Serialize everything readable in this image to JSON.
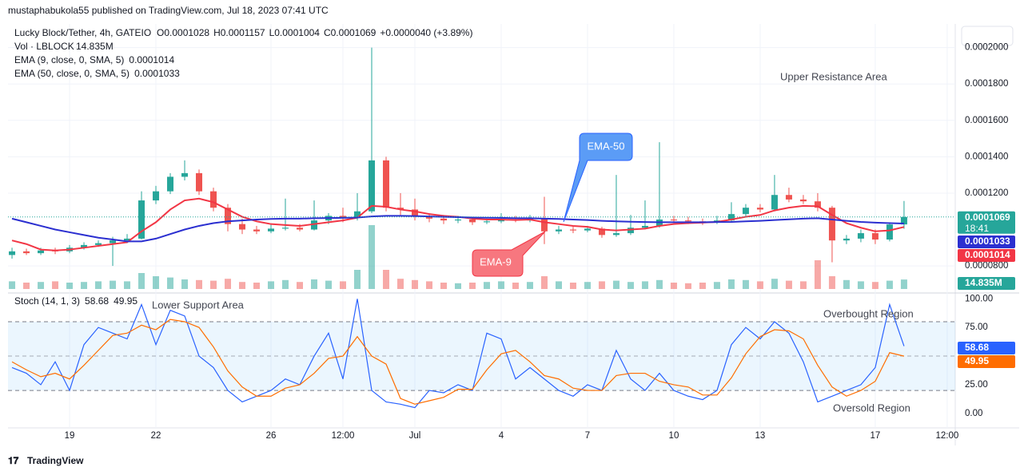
{
  "header": {
    "published": "mustaphabukola55 published on TradingView.com, Jul 18, 2023 07:41 UTC",
    "brand": "TradingView"
  },
  "chart_data": [
    {
      "type": "candlestick",
      "title": "Lucky Block/Tether, 4h, GATEIO",
      "ohlc_labels": [
        "O0.0001028",
        "H0.0001157",
        "L0.0001004",
        "C0.0001069",
        "+0.0000040 (+3.89%)"
      ],
      "up_color": "#26a69a",
      "down_color": "#ef5350",
      "open": [
        8.6e-05,
        8.8e-05,
        8.7e-05,
        8.85e-05,
        8.8e-05,
        9e-05,
        9.15e-05,
        9.25e-05,
        9.4e-05,
        9.5e-05,
        0.000116,
        0.000121,
        0.000129,
        0.000131,
        0.000121,
        0.000112,
        0.000103,
        0.0001,
        9.9e-05,
        0.0001005,
        0.000101,
        0.0001,
        0.000105,
        0.0001075,
        0.0001065,
        0.00011,
        0.000138,
        0.000112,
        0.000111,
        0.000107,
        0.000106,
        0.000105,
        0.0001055,
        0.000104,
        0.0001045,
        0.0001055,
        0.000105,
        0.000106,
        9.9e-05,
        0.0001,
        9.95e-05,
        0.0001005,
        9.7e-05,
        9.8e-05,
        0.000101,
        0.000102,
        0.0001055,
        0.000105,
        0.0001045,
        0.000104,
        0.000105,
        0.0001085,
        0.000112,
        0.000111,
        0.000119,
        0.0001165,
        0.0001155,
        0.000112,
        9.4e-05,
        9.5e-05,
        9.8e-05,
        9.45e-05,
        0.0001028
      ],
      "high": [
        9e-05,
        8.95e-05,
        9e-05,
        9e-05,
        9.15e-05,
        9.3e-05,
        9.4e-05,
        9.6e-05,
        9.75e-05,
        0.000121,
        0.000124,
        0.000131,
        0.000138,
        0.000133,
        0.000123,
        0.000114,
        0.000106,
        0.000102,
        0.000103,
        0.000117,
        0.000103,
        0.000116,
        0.000109,
        0.000112,
        0.00012,
        0.0002,
        0.00014,
        0.00012,
        0.000117,
        0.000109,
        0.000108,
        0.0001075,
        0.000107,
        0.000106,
        0.000109,
        0.0001075,
        0.000108,
        0.000118,
        0.000102,
        0.0001015,
        0.000102,
        0.0001015,
        0.00013,
        0.000108,
        0.000116,
        0.000148,
        0.0001075,
        0.000107,
        0.000106,
        0.0001075,
        0.000115,
        0.000114,
        0.000114,
        0.00013,
        0.000123,
        0.000119,
        0.00012,
        0.000113,
        9.7e-05,
        0.0001,
        0.0001,
        0.000104,
        0.0001157
      ],
      "low": [
        8.4e-05,
        8.6e-05,
        8.6e-05,
        8.65e-05,
        8.7e-05,
        8.9e-05,
        9.05e-05,
        8e-05,
        9.25e-05,
        9.45e-05,
        0.000114,
        0.0001195,
        0.000127,
        0.000119,
        0.00011,
        9.9e-05,
        9.75e-05,
        9.75e-05,
        9.8e-05,
        9.95e-05,
        9.9e-05,
        9.95e-05,
        0.000103,
        0.000104,
        0.000105,
        0.000109,
        0.00011,
        0.000108,
        0.000105,
        0.000104,
        0.000103,
        0.0001035,
        0.0001025,
        0.000103,
        0.0001035,
        0.000104,
        0.000104,
        9.2e-05,
        9.75e-05,
        9.8e-05,
        9.85e-05,
        9.55e-05,
        9.6e-05,
        9.7e-05,
        0.0001,
        0.000101,
        0.0001035,
        0.000103,
        0.0001025,
        0.000103,
        0.000104,
        0.000107,
        0.0001095,
        0.00011,
        0.000115,
        0.000114,
        0.00011,
        8.2e-05,
        9.2e-05,
        9.3e-05,
        9.2e-05,
        9.35e-05,
        0.0001004
      ],
      "close": [
        8.8e-05,
        8.7e-05,
        8.85e-05,
        8.8e-05,
        9e-05,
        9.15e-05,
        9.25e-05,
        9.4e-05,
        9.5e-05,
        0.000116,
        0.000121,
        0.000129,
        0.000131,
        0.000121,
        0.000112,
        0.000103,
        0.0001,
        9.9e-05,
        0.0001005,
        0.000101,
        0.0001,
        0.000105,
        0.0001075,
        0.0001065,
        0.00011,
        0.000138,
        0.000112,
        0.000111,
        0.000107,
        0.000106,
        0.000105,
        0.0001055,
        0.000104,
        0.0001045,
        0.0001055,
        0.000105,
        0.000106,
        9.9e-05,
        0.0001,
        9.95e-05,
        0.0001005,
        9.7e-05,
        9.8e-05,
        0.000101,
        0.000102,
        0.0001055,
        0.000105,
        0.0001045,
        0.000104,
        0.000105,
        0.0001085,
        0.000112,
        0.000111,
        0.000119,
        0.0001165,
        0.0001155,
        0.000112,
        9.4e-05,
        9.5e-05,
        9.8e-05,
        9.45e-05,
        0.0001028,
        0.0001069
      ],
      "lines": [
        {
          "name": "EMA (9, close, 0, SMA, 5)",
          "color": "#f23645",
          "value_label": "0.0001014",
          "values": [
            9.4e-05,
            9.2e-05,
            8.9e-05,
            8.85e-05,
            8.9e-05,
            9e-05,
            9.1e-05,
            9.2e-05,
            9.3e-05,
            9.9e-05,
            0.000104,
            0.000111,
            0.000116,
            0.000117,
            0.000115,
            0.000111,
            0.000107,
            0.0001045,
            0.000103,
            0.0001025,
            0.000102,
            0.000103,
            0.000104,
            0.000105,
            0.0001065,
            0.000113,
            0.0001125,
            0.000111,
            0.00011,
            0.0001085,
            0.0001075,
            0.000107,
            0.000106,
            0.0001055,
            0.0001055,
            0.0001052,
            0.0001055,
            0.000104,
            0.000103,
            0.000102,
            0.0001015,
            0.0001,
            9.95e-05,
            0.0001,
            0.0001005,
            0.000102,
            0.000103,
            0.0001035,
            0.0001038,
            0.0001042,
            0.0001055,
            0.000107,
            0.000108,
            0.0001105,
            0.000112,
            0.000113,
            0.0001128,
            0.000108,
            0.0001035,
            0.000101,
            9.9e-05,
            9.95e-05,
            0.0001014
          ]
        },
        {
          "name": "EMA (50, close, 0, SMA, 5)",
          "color": "#2b2fd0",
          "value_label": "0.0001033",
          "values": [
            0.000106,
            0.000104,
            0.000102,
            0.0001,
            9.85e-05,
            9.7e-05,
            9.55e-05,
            9.45e-05,
            9.35e-05,
            9.35e-05,
            9.5e-05,
            9.75e-05,
            0.0001,
            0.000102,
            0.0001035,
            0.0001045,
            0.000105,
            0.0001055,
            0.0001058,
            0.000106,
            0.000106,
            0.0001062,
            0.0001063,
            0.0001064,
            0.0001066,
            0.0001072,
            0.0001075,
            0.0001075,
            0.0001074,
            0.0001072,
            0.000107,
            0.0001068,
            0.0001066,
            0.0001065,
            0.0001064,
            0.0001062,
            0.0001062,
            0.000106,
            0.0001058,
            0.0001055,
            0.0001052,
            0.0001048,
            0.0001045,
            0.0001043,
            0.0001041,
            0.000104,
            0.000104,
            0.000104,
            0.000104,
            0.0001041,
            0.0001042,
            0.0001045,
            0.0001048,
            0.0001052,
            0.0001056,
            0.000106,
            0.0001062,
            0.0001055,
            0.0001048,
            0.0001042,
            0.0001038,
            0.0001035,
            0.0001033
          ]
        }
      ],
      "last_price_label": "0.0001069",
      "countdown": "18:41",
      "ylim": [
        6.6e-05,
        0.000213
      ],
      "yticks": [
        {
          "value": 8e-05,
          "label": "0.0000800"
        },
        {
          "value": 0.00012,
          "label": "0.0001200"
        },
        {
          "value": 0.00014,
          "label": "0.0001400"
        },
        {
          "value": 0.00016,
          "label": "0.0001600"
        },
        {
          "value": 0.00018,
          "label": "0.0001800"
        },
        {
          "value": 0.0002,
          "label": "0.0002000"
        }
      ],
      "annotations": [
        "Upper Resistance Area",
        "EMA-50",
        "EMA-9"
      ]
    },
    {
      "type": "bar",
      "title": "Vol · LBLOCK",
      "value_label": "14.835M",
      "ylim": [
        0,
        100
      ],
      "values": [
        12,
        10,
        11,
        12,
        10,
        11,
        12,
        13,
        12,
        25,
        20,
        18,
        15,
        14,
        13,
        16,
        11,
        10,
        12,
        14,
        11,
        15,
        13,
        12,
        30,
        100,
        30,
        16,
        14,
        12,
        10,
        9,
        10,
        11,
        12,
        10,
        11,
        20,
        12,
        10,
        11,
        12,
        13,
        11,
        12,
        14,
        10,
        9,
        10,
        11,
        15,
        14,
        12,
        16,
        13,
        12,
        45,
        20,
        14,
        12,
        11,
        13,
        14.835
      ]
    },
    {
      "type": "line",
      "title": "Stoch (14, 1, 3)",
      "series": [
        {
          "name": "%K",
          "color": "#2962ff",
          "value_label": "58.68",
          "values": [
            40,
            35,
            25,
            45,
            20,
            60,
            75,
            70,
            65,
            95,
            60,
            90,
            85,
            50,
            40,
            20,
            10,
            15,
            20,
            30,
            25,
            50,
            70,
            30,
            100,
            20,
            10,
            8,
            5,
            20,
            18,
            25,
            20,
            70,
            65,
            30,
            40,
            30,
            20,
            15,
            25,
            20,
            55,
            30,
            20,
            35,
            20,
            15,
            12,
            20,
            60,
            75,
            65,
            80,
            70,
            45,
            10,
            15,
            20,
            25,
            40,
            95,
            58.68
          ]
        },
        {
          "name": "%D",
          "color": "#ff6d00",
          "value_label": "49.95",
          "values": [
            45,
            38,
            32,
            35,
            30,
            42,
            55,
            68,
            70,
            77,
            73,
            82,
            80,
            75,
            58,
            37,
            23,
            15,
            15,
            22,
            25,
            35,
            48,
            50,
            67,
            50,
            43,
            13,
            8,
            11,
            14,
            21,
            21,
            38,
            52,
            55,
            45,
            33,
            30,
            22,
            20,
            20,
            33,
            35,
            35,
            28,
            25,
            23,
            16,
            16,
            31,
            52,
            67,
            73,
            72,
            65,
            42,
            23,
            15,
            20,
            28,
            53,
            49.95
          ]
        }
      ],
      "ylim": [
        -12,
        103
      ],
      "yticks": [
        {
          "value": 0,
          "label": "0.00"
        },
        {
          "value": 25,
          "label": "25.00"
        },
        {
          "value": 75,
          "label": "75.00"
        },
        {
          "value": 100,
          "label": "100.00"
        }
      ],
      "bands": [
        20,
        80
      ],
      "midline": 50,
      "xlim": [
        -0.28,
        65.56
      ],
      "xticks": [
        {
          "value": 4,
          "label": "19"
        },
        {
          "value": 10,
          "label": "22"
        },
        {
          "value": 18,
          "label": "26"
        },
        {
          "value": 23,
          "label": "12:00"
        },
        {
          "value": 28,
          "label": "Jul"
        },
        {
          "value": 34,
          "label": "4"
        },
        {
          "value": 40,
          "label": "7"
        },
        {
          "value": 46,
          "label": "10"
        },
        {
          "value": 52,
          "label": "13"
        },
        {
          "value": 60,
          "label": "17"
        },
        {
          "value": 65,
          "label": "12:00"
        }
      ],
      "annotations": [
        "Lower Support Area",
        "Overbought Region",
        "Oversold Region"
      ]
    }
  ]
}
